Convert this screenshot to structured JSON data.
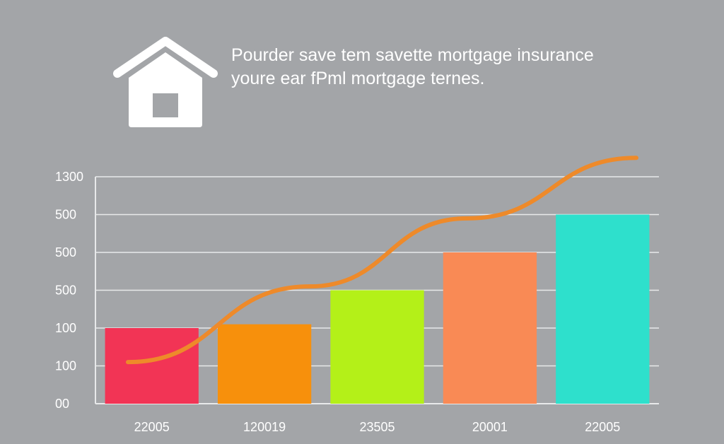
{
  "header": {
    "title": "",
    "subtitle_line1": "Pourder save tem savette mortgage insurance",
    "subtitle_line2": "youre ear fPml mortgage ternes."
  },
  "icons": {
    "house": "house-icon"
  },
  "colors": {
    "background": "#a3a5a8",
    "text": "#ffffff",
    "gridline": "#e8e9ea",
    "trend_line": "#ee8a2a"
  },
  "chart_data": {
    "type": "bar",
    "title": "",
    "xlabel": "",
    "ylabel": "",
    "y_tick_labels": [
      "00",
      "100",
      "100",
      "500",
      "500",
      "500",
      "1300"
    ],
    "categories": [
      "22005",
      "120019",
      "23505",
      "20001",
      "22005"
    ],
    "values": [
      2,
      2.1,
      3,
      4,
      5
    ],
    "ylim": [
      0,
      6
    ],
    "bar_colors": [
      "#f23455",
      "#f7900c",
      "#b4f018",
      "#f98a55",
      "#2ee0cc"
    ],
    "trend": [
      1.1,
      3.1,
      4.9,
      6.5
    ],
    "grid": true,
    "legend": "none"
  }
}
